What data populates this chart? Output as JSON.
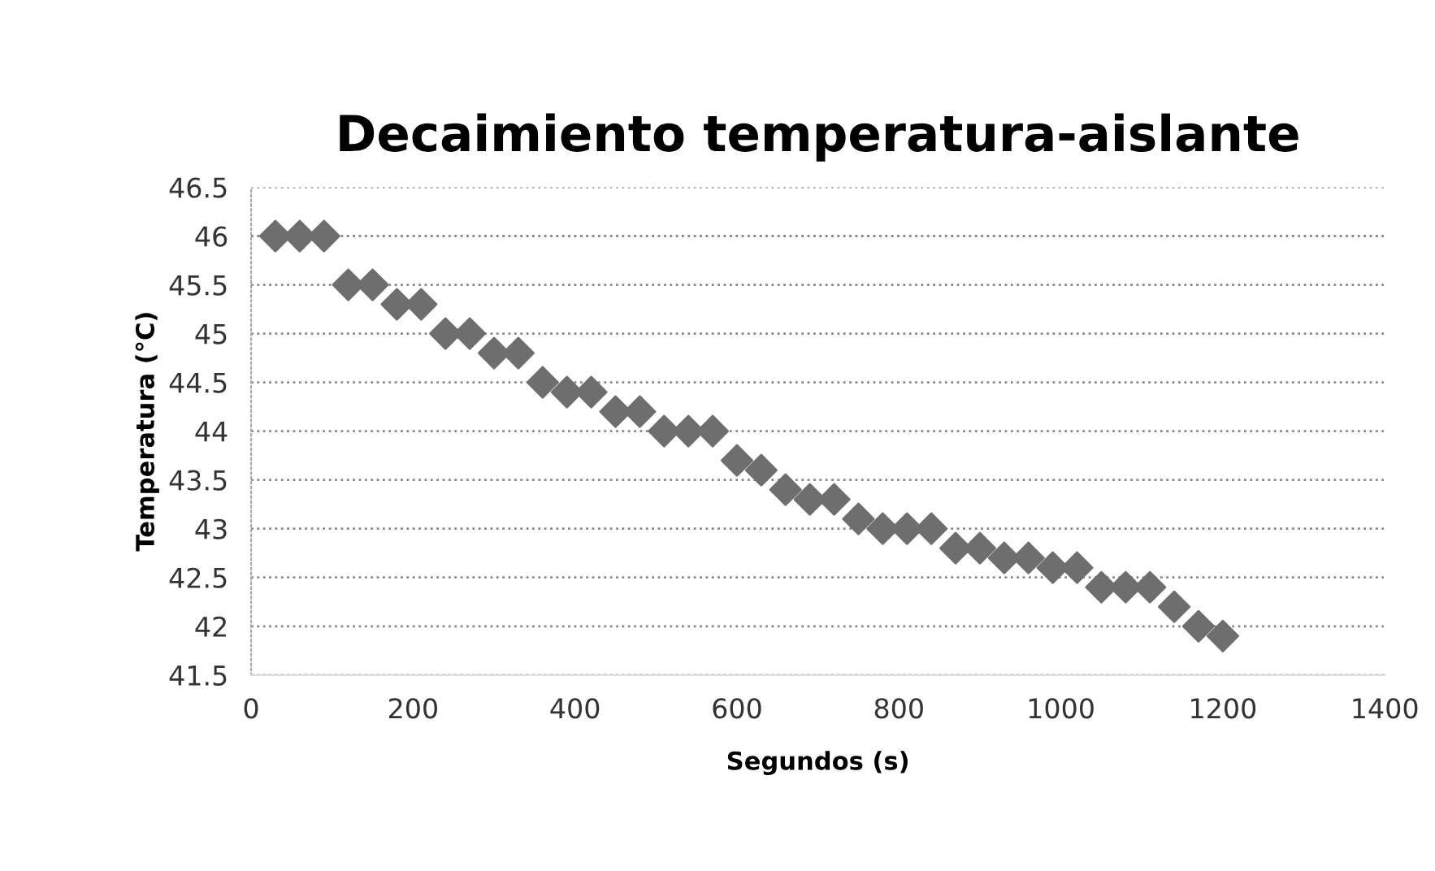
{
  "chart_data": {
    "type": "scatter",
    "title": "Decaimiento temperatura-aislante",
    "xlabel": "Segundos (s)",
    "ylabel": "Temperatura (°C)",
    "x": [
      30,
      60,
      90,
      120,
      150,
      180,
      210,
      240,
      270,
      300,
      330,
      360,
      390,
      420,
      450,
      480,
      510,
      540,
      570,
      600,
      630,
      660,
      690,
      720,
      750,
      780,
      810,
      840,
      870,
      900,
      930,
      960,
      990,
      1020,
      1050,
      1080,
      1110,
      1140,
      1170,
      1200
    ],
    "series": [
      {
        "color": "#6e6e6e",
        "values": [
          46,
          46,
          46,
          45.5,
          45.5,
          45.3,
          45.3,
          45,
          45,
          44.8,
          44.8,
          44.5,
          44.4,
          44.4,
          44.2,
          44.2,
          44,
          44,
          44,
          43.7,
          43.6,
          43.4,
          43.3,
          43.3,
          43.1,
          43,
          43,
          43,
          42.8,
          42.8,
          42.7,
          42.7,
          42.6,
          42.6,
          42.4,
          42.4,
          42.4,
          42.2,
          42,
          41.9
        ]
      }
    ],
    "xlim": [
      0,
      1400
    ],
    "xticks": [
      0,
      200,
      400,
      600,
      800,
      1000,
      1200,
      1400
    ],
    "ylim": [
      41.5,
      46.5
    ],
    "yticks": [
      41.5,
      42,
      42.5,
      43,
      43.5,
      44,
      44.5,
      45,
      45.5,
      46,
      46.5
    ],
    "grid": "y",
    "marker": "diamond"
  }
}
